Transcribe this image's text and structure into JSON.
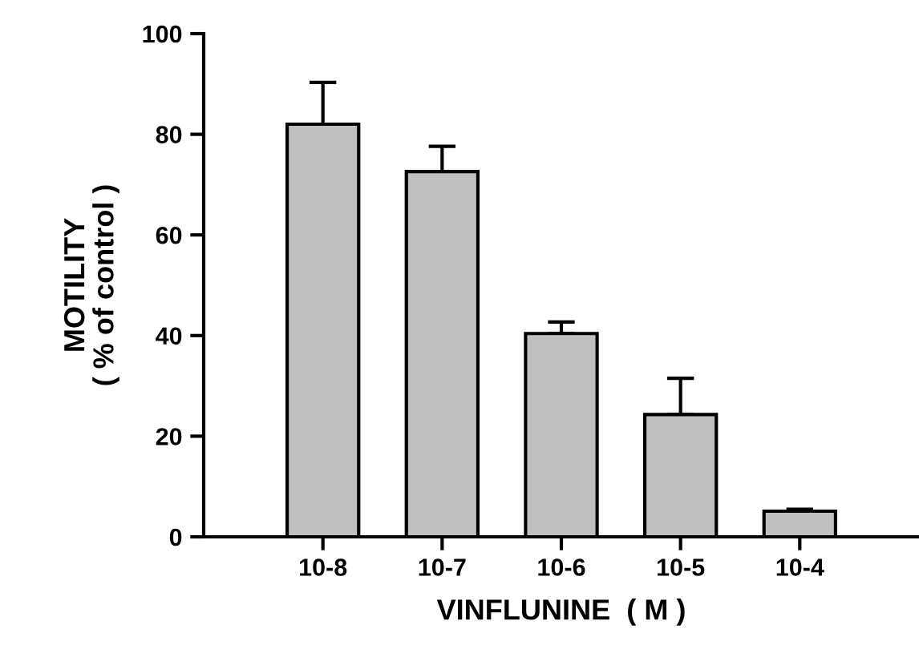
{
  "chart_data": {
    "type": "bar",
    "xlabel": "VINFLUNINE  ( M )",
    "ylabel": "MOTILITY\n( % of control )",
    "categories": [
      "10-8",
      "10-7",
      "10-6",
      "10-5",
      "10-4"
    ],
    "values": [
      82.0,
      72.6,
      40.4,
      24.3,
      5.1
    ],
    "errors": [
      [
        82.0,
        90.3
      ],
      [
        72.6,
        77.6
      ],
      [
        40.4,
        42.7
      ],
      [
        24.3,
        31.5
      ],
      [
        5.1,
        5.5
      ]
    ],
    "color": "#c0c0c0",
    "ylim": [
      0,
      100
    ],
    "yticks": [
      0,
      20,
      40,
      60,
      80,
      100
    ],
    "grid": false
  }
}
